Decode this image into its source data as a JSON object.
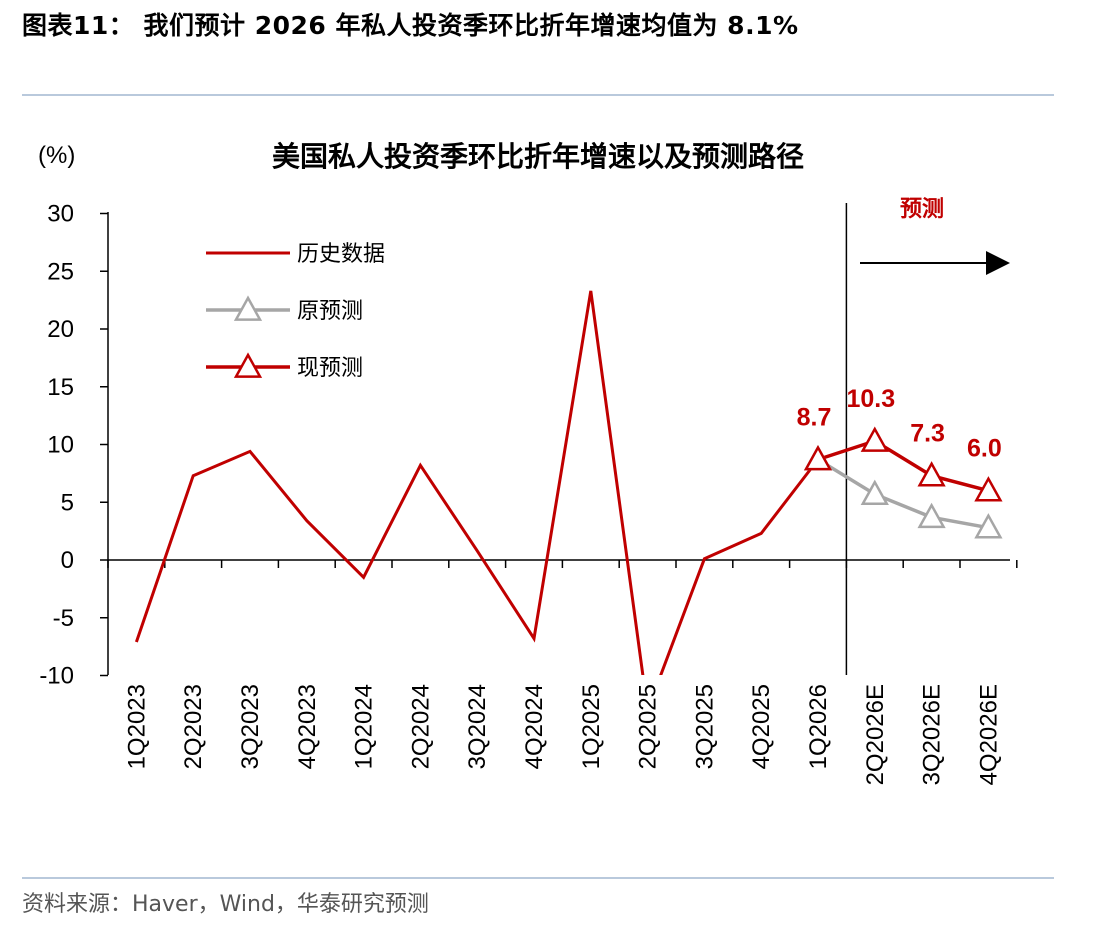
{
  "figure_title": "图表11： 我们预计 2026 年私人投资季环比折年增速均值为 8.1%",
  "source_note": "资料来源：Haver，Wind，华泰研究预测",
  "colors": {
    "history": "#c00000",
    "original_forecast": "#a6a6a6",
    "current_forecast": "#c00000",
    "rule": "#b9c9dc"
  },
  "chart_data": {
    "type": "line",
    "title": "美国私人投资季环比折年增速以及预测路径",
    "ylabel": "(%)",
    "xlabel": "",
    "ylim": [
      -10,
      30
    ],
    "yticks": [
      30,
      25,
      20,
      15,
      10,
      5,
      0,
      -5,
      -10
    ],
    "categories": [
      "1Q2023",
      "2Q2023",
      "3Q2023",
      "4Q2023",
      "1Q2024",
      "2Q2024",
      "3Q2024",
      "4Q2024",
      "1Q2025",
      "2Q2025",
      "3Q2025",
      "4Q2025",
      "1Q2026",
      "2Q2026E",
      "3Q2026E",
      "4Q2026E"
    ],
    "forecast_label": "预测",
    "series": [
      {
        "name": "历史数据",
        "values": [
          -7.1,
          7.3,
          9.4,
          3.4,
          -1.5,
          8.2,
          0.8,
          -6.8,
          23.3,
          -13.0,
          0.1,
          2.3,
          8.7,
          null,
          null,
          null
        ]
      },
      {
        "name": "原预测",
        "values": [
          null,
          null,
          null,
          null,
          null,
          null,
          null,
          null,
          null,
          null,
          null,
          null,
          8.7,
          5.7,
          3.7,
          2.8
        ]
      },
      {
        "name": "现预测",
        "values": [
          null,
          null,
          null,
          null,
          null,
          null,
          null,
          null,
          null,
          null,
          null,
          null,
          8.7,
          10.3,
          7.3,
          6.0
        ]
      }
    ],
    "data_labels": [
      {
        "category": "1Q2026",
        "text": "8.7"
      },
      {
        "category": "2Q2026E",
        "text": "10.3"
      },
      {
        "category": "3Q2026E",
        "text": "7.3"
      },
      {
        "category": "4Q2026E",
        "text": "6.0"
      }
    ],
    "legend_position": "top-left",
    "grid": false
  }
}
